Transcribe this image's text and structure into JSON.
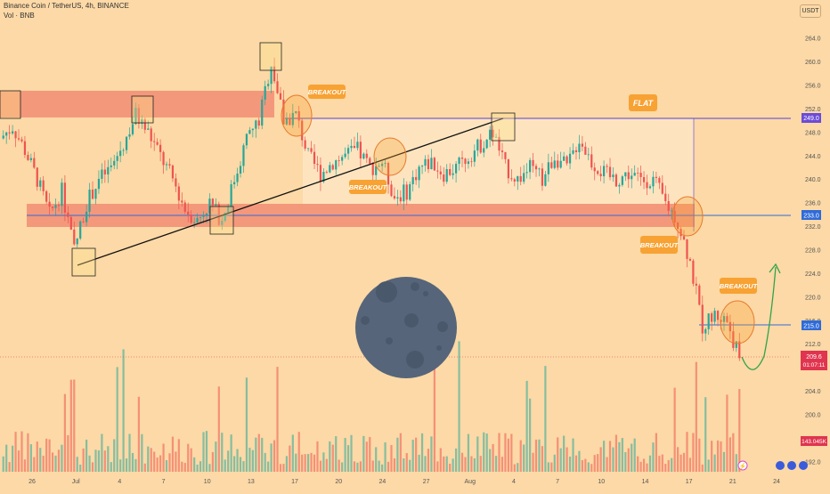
{
  "header": {
    "symbol_line": "Binance Coin / TetherUS, 4h, BINANCE",
    "volume_line": "Vol · BNB",
    "currency": "USDT"
  },
  "annotations": {
    "breakout_1": "BREAKOUT",
    "breakout_2": "BREAKOUT",
    "breakout_3": "BREAKOUT",
    "breakout_4": "BREAKOUT",
    "flat": "FLAT"
  },
  "price_axis": {
    "ticks": [
      "264.0",
      "260.0",
      "256.0",
      "252.0",
      "248.0",
      "244.0",
      "240.0",
      "236.0",
      "232.0",
      "228.0",
      "224.0",
      "220.0",
      "216.0",
      "212.0",
      "208.0",
      "204.0",
      "200.0",
      "196.0",
      "192.0"
    ],
    "labels": {
      "level_249": "249.0",
      "level_233": "233.0",
      "level_215": "215.0",
      "last_price": "209.6",
      "countdown": "01:07:11",
      "volume_value": "143.045K"
    }
  },
  "time_axis": {
    "ticks": [
      "26",
      "Jul",
      "4",
      "7",
      "10",
      "13",
      "17",
      "20",
      "24",
      "27",
      "Aug",
      "4",
      "7",
      "10",
      "14",
      "17",
      "21",
      "24"
    ]
  },
  "colors": {
    "background": "#fcd9a6",
    "bull": "#26a69a",
    "bear": "#ef5350",
    "zone": "#f28c73",
    "flat_level": "#5b3fd6",
    "mid_level": "#2f6bd8",
    "low_level": "#2f6bd8",
    "last_price": "#e0344f",
    "label_bg": "#f7a233"
  },
  "chart_data": {
    "type": "candlestick",
    "symbol": "BNBUSDT",
    "timeframe": "4h",
    "exchange": "BINANCE",
    "y_range": [
      190,
      266
    ],
    "levels": {
      "flat_top": 249.0,
      "support": 233.0,
      "lower_support": 215.0,
      "last_price": 209.6
    },
    "resistance_zone": [
      249,
      254
    ],
    "support_zone": [
      231,
      235
    ],
    "trendline": {
      "from": {
        "date": "Jun 28",
        "price": 225
      },
      "to": {
        "date": "Aug 1",
        "price": 249
      }
    },
    "close_path": [
      [
        "Jun 22",
        247
      ],
      [
        "Jun 23",
        249
      ],
      [
        "Jun 24",
        245
      ],
      [
        "Jun 25",
        240
      ],
      [
        "Jun 26",
        234
      ],
      [
        "Jun 27",
        238
      ],
      [
        "Jun 28",
        228
      ],
      [
        "Jun 29",
        236
      ],
      [
        "Jun 30",
        240
      ],
      [
        "Jul 1",
        242
      ],
      [
        "Jul 2",
        246
      ],
      [
        "Jul 3",
        251
      ],
      [
        "Jul 4",
        248
      ],
      [
        "Jul 5",
        244
      ],
      [
        "Jul 6",
        240
      ],
      [
        "Jul 7",
        235
      ],
      [
        "Jul 8",
        233
      ],
      [
        "Jul 9",
        236
      ],
      [
        "Jul 10",
        233
      ],
      [
        "Jul 11",
        240
      ],
      [
        "Jul 12",
        247
      ],
      [
        "Jul 13",
        250
      ],
      [
        "Jul 14",
        260
      ],
      [
        "Jul 15",
        250
      ],
      [
        "Jul 16",
        251
      ],
      [
        "Jul 17",
        244
      ],
      [
        "Jul 18",
        241
      ],
      [
        "Jul 19",
        243
      ],
      [
        "Jul 20",
        244
      ],
      [
        "Jul 21",
        245
      ],
      [
        "Jul 22",
        242
      ],
      [
        "Jul 23",
        243
      ],
      [
        "Jul 24",
        237
      ],
      [
        "Jul 25",
        238
      ],
      [
        "Jul 26",
        242
      ],
      [
        "Jul 27",
        243
      ],
      [
        "Jul 28",
        241
      ],
      [
        "Jul 29",
        242
      ],
      [
        "Jul 30",
        244
      ],
      [
        "Jul 31",
        246
      ],
      [
        "Aug 1",
        248
      ],
      [
        "Aug 2",
        242
      ],
      [
        "Aug 3",
        240
      ],
      [
        "Aug 4",
        242
      ],
      [
        "Aug 5",
        240
      ],
      [
        "Aug 6",
        244
      ],
      [
        "Aug 7",
        242
      ],
      [
        "Aug 8",
        247
      ],
      [
        "Aug 9",
        243
      ],
      [
        "Aug 10",
        241
      ],
      [
        "Aug 11",
        240
      ],
      [
        "Aug 12",
        241
      ],
      [
        "Aug 13",
        240
      ],
      [
        "Aug 14",
        240
      ],
      [
        "Aug 15",
        236
      ],
      [
        "Aug 16",
        233
      ],
      [
        "Aug 17",
        226
      ],
      [
        "Aug 18",
        215
      ],
      [
        "Aug 19",
        217
      ],
      [
        "Aug 20",
        216
      ],
      [
        "Aug 21",
        209.6
      ]
    ],
    "projection": [
      [
        "Aug 21",
        209.6
      ],
      [
        "Aug 22",
        208
      ],
      [
        "Aug 23",
        224
      ]
    ],
    "volume_last": "143.045K"
  }
}
